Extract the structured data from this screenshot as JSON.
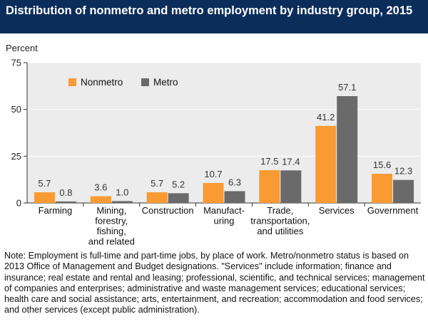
{
  "title": "Distribution of nonmetro and metro employment by industry group, 2015",
  "note": "Note: Employment is full-time and part-time jobs, by place of work. Metro/nonmetro status is based on 2013 Office of Management and Budget designations. \"Services\" include information; finance and insurance; real estate and rental and leasing; professional, scientific, and technical services; management of companies and enterprises; administrative and waste management services; educational services; health care and social assistance; arts, entertainment, and recreation; accommodation and food services; and other services (except public administration).",
  "chart_data": {
    "type": "bar",
    "ylabel": "Percent",
    "ylim": [
      0,
      75
    ],
    "yticks": [
      0,
      25,
      50,
      75
    ],
    "grid": true,
    "legend": "top-left",
    "categories": [
      [
        "Farming"
      ],
      [
        "Mining,",
        "forestry,",
        "fishing,",
        "and related"
      ],
      [
        "Construction"
      ],
      [
        "Manufact-",
        "uring"
      ],
      [
        "Trade,",
        "transportation,",
        "and utilities"
      ],
      [
        "Services"
      ],
      [
        "Government"
      ]
    ],
    "series": [
      {
        "name": "Nonmetro",
        "color": "#f99b32",
        "values": [
          5.7,
          3.6,
          5.7,
          10.7,
          17.5,
          41.2,
          15.6
        ]
      },
      {
        "name": "Metro",
        "color": "#6a6a6a",
        "values": [
          0.8,
          1.0,
          5.2,
          6.3,
          17.4,
          57.1,
          12.3
        ]
      }
    ]
  }
}
